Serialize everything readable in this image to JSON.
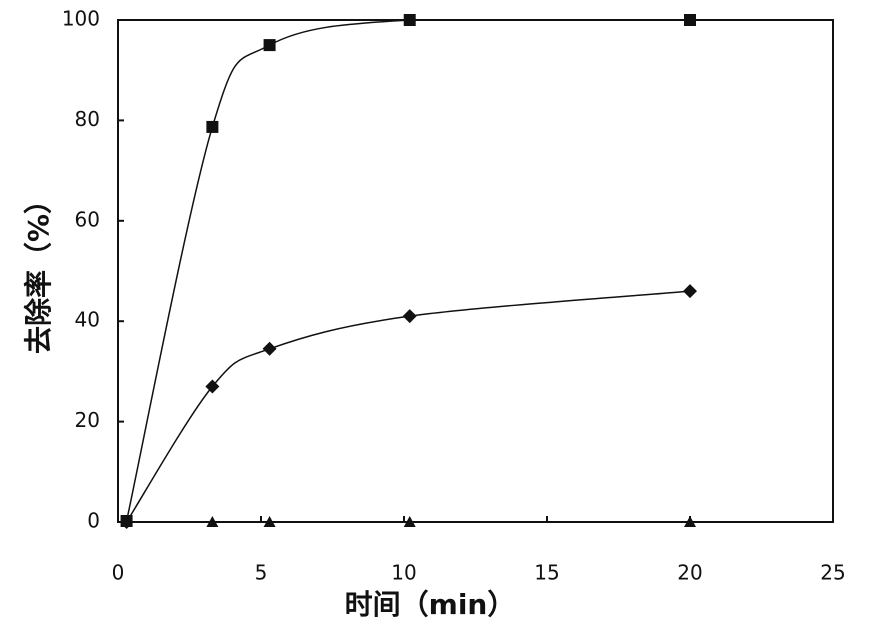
{
  "chart_data": {
    "type": "line",
    "x_label": "时间（min）",
    "y_label": "去除率（%）",
    "xlim": [
      0,
      25
    ],
    "xticks": [
      0,
      5,
      10,
      15,
      20,
      25
    ],
    "ylim": [
      0,
      100
    ],
    "yticks": [
      0,
      20,
      40,
      60,
      80,
      100
    ],
    "series": [
      {
        "marker": "square",
        "color": "#111111",
        "x": [
          0.3,
          3.3,
          5.3,
          10.2,
          20
        ],
        "values": [
          0.2,
          78.7,
          95,
          100,
          100
        ]
      },
      {
        "marker": "diamond",
        "color": "#111111",
        "x": [
          0.3,
          3.3,
          5.3,
          10.2,
          20
        ],
        "values": [
          0,
          27,
          34.5,
          41,
          46
        ]
      },
      {
        "marker": "triangle",
        "color": "#111111",
        "x": [
          0.3,
          3.3,
          5.3,
          10.2,
          20
        ],
        "values": [
          0,
          0,
          0,
          0,
          0
        ]
      }
    ]
  }
}
